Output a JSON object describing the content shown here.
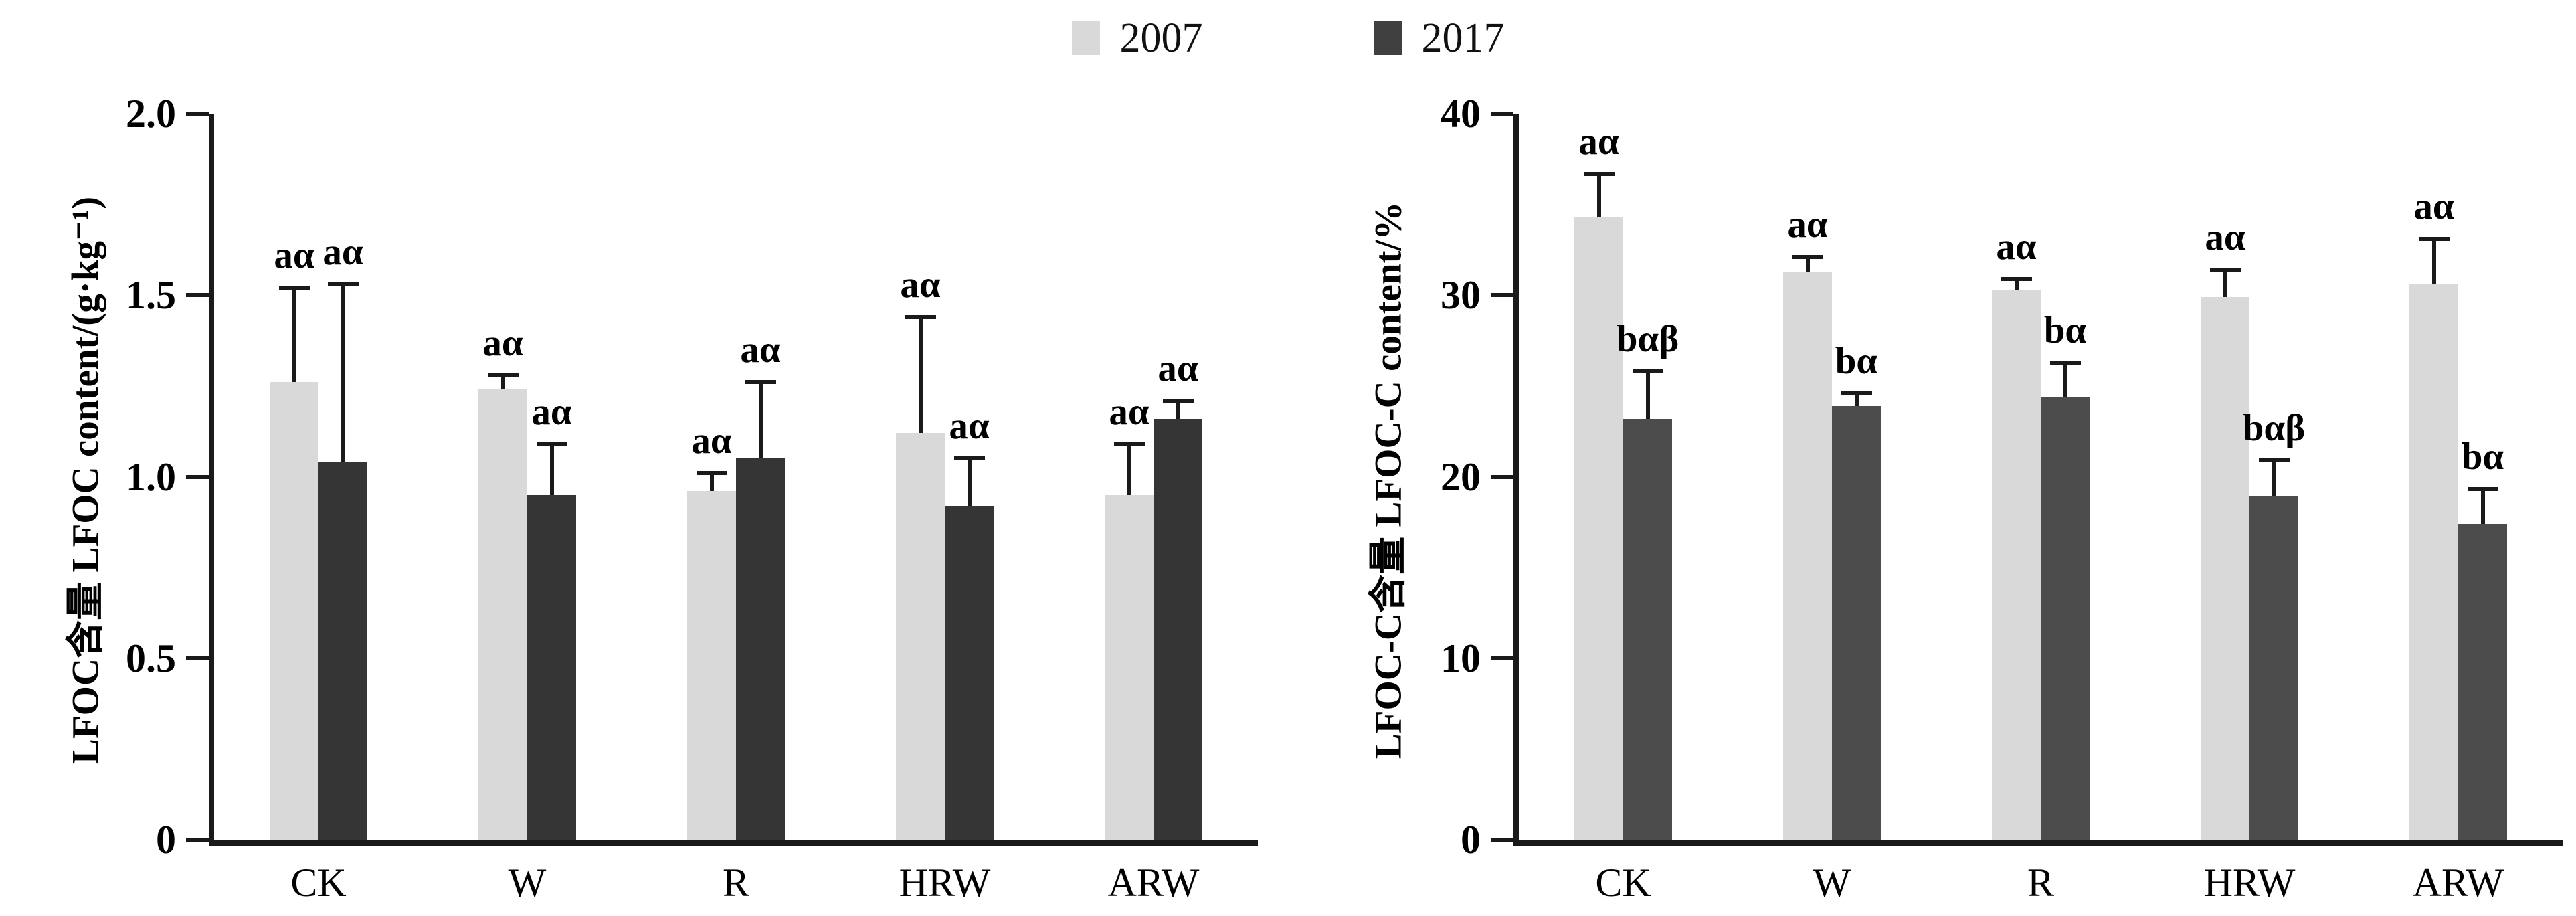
{
  "legend": {
    "items": [
      {
        "label": "2007",
        "color": "#d9d9d9"
      },
      {
        "label": "2017",
        "color": "#404040"
      }
    ]
  },
  "chart_data": [
    {
      "type": "bar",
      "panel": "left",
      "title": "",
      "xlabel": "",
      "ylabel": "LFOC含量 LFOC content/(g·kg⁻¹)",
      "ylim": [
        0,
        2.0
      ],
      "grid": false,
      "legend_position": "top-center",
      "yticks": [
        {
          "value": 0,
          "label": "0"
        },
        {
          "value": 0.5,
          "label": "0.5"
        },
        {
          "value": 1.0,
          "label": "1.0"
        },
        {
          "value": 1.5,
          "label": "1.5"
        },
        {
          "value": 2.0,
          "label": "2.0"
        }
      ],
      "categories": [
        "CK",
        "W",
        "R",
        "HRW",
        "ARW"
      ],
      "series": [
        {
          "name": "2007",
          "color": "#d9d9d9",
          "values": [
            1.26,
            1.24,
            0.96,
            1.12,
            0.95
          ],
          "errors": [
            0.26,
            0.04,
            0.05,
            0.32,
            0.14
          ],
          "sig_labels": [
            "aα",
            "aα",
            "aα",
            "aα",
            "aα"
          ]
        },
        {
          "name": "2017",
          "color": "#353535",
          "values": [
            1.04,
            0.95,
            1.05,
            0.92,
            1.16
          ],
          "errors": [
            0.49,
            0.14,
            0.21,
            0.13,
            0.05
          ],
          "sig_labels": [
            "aα",
            "aα",
            "aα",
            "aα",
            "aα"
          ]
        }
      ]
    },
    {
      "type": "bar",
      "panel": "right",
      "title": "",
      "xlabel": "",
      "ylabel": "LFOC-C含量 LFOC-C content/%",
      "ylim": [
        0,
        40
      ],
      "grid": false,
      "legend_position": "top-center",
      "yticks": [
        {
          "value": 0,
          "label": "0"
        },
        {
          "value": 10,
          "label": "10"
        },
        {
          "value": 20,
          "label": "20"
        },
        {
          "value": 30,
          "label": "30"
        },
        {
          "value": 40,
          "label": "40"
        }
      ],
      "categories": [
        "CK",
        "W",
        "R",
        "HRW",
        "ARW"
      ],
      "series": [
        {
          "name": "2007",
          "color": "#d9d9d9",
          "values": [
            34.3,
            31.3,
            30.3,
            29.9,
            30.6
          ],
          "errors": [
            2.4,
            0.8,
            0.6,
            1.5,
            2.5
          ],
          "sig_labels": [
            "aα",
            "aα",
            "aα",
            "aα",
            "aα"
          ]
        },
        {
          "name": "2017",
          "color": "#4c4c4c",
          "values": [
            23.2,
            23.9,
            24.4,
            18.9,
            17.4
          ],
          "errors": [
            2.6,
            0.7,
            1.9,
            2.0,
            1.9
          ],
          "sig_labels": [
            "bαβ",
            "bα",
            "bα",
            "bαβ",
            "bα"
          ]
        }
      ]
    }
  ]
}
